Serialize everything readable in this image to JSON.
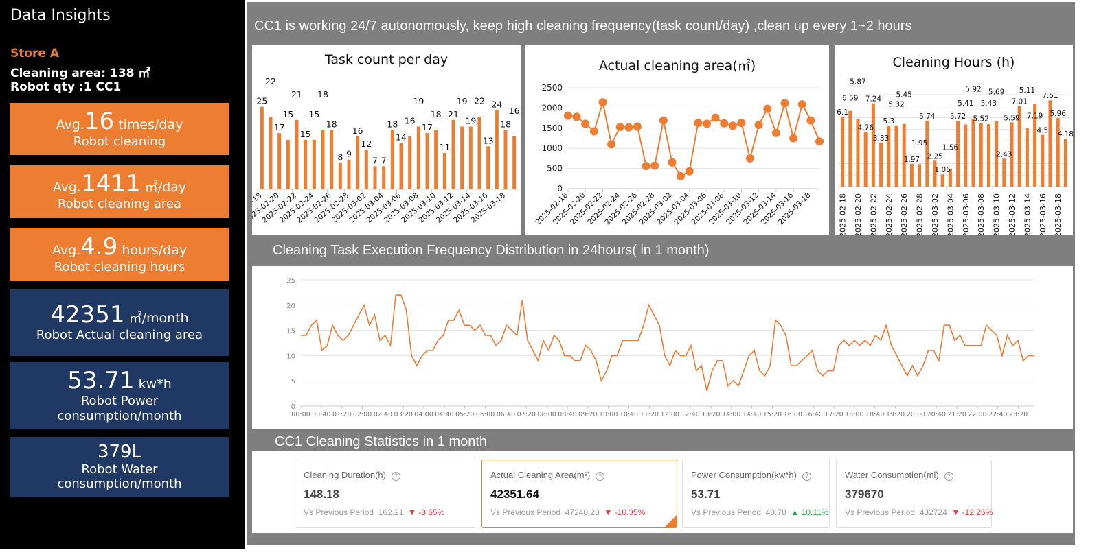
{
  "left": {
    "title": "Data Insights",
    "store": "Store A",
    "area": "Cleaning area: 138 ㎡",
    "robot": "Robot qty :1  CC1",
    "kpis": [
      {
        "prefix": "Avg.",
        "value": "16",
        "unit": " times/day",
        "label": "Robot cleaning"
      },
      {
        "prefix": "Avg.",
        "value": "1411",
        "unit": " ㎡/day",
        "label": "Robot cleaning area"
      },
      {
        "prefix": "Avg.",
        "value": "4.9",
        "unit": " hours/day",
        "label": "Robot cleaning hours"
      },
      {
        "value": "42351",
        "unit": " ㎡/month",
        "label": "Robot Actual cleaning area"
      },
      {
        "value": "53.71",
        "unit": " kw*h",
        "label": "Robot Power consumption/month"
      },
      {
        "value": "379L",
        "label": "Robot Water consumption/month"
      }
    ]
  },
  "header": "CC1 is working 24/7 autonomously, keep high cleaning frequency(task count/day) ,clean up every 1~2 hours",
  "section2_title": "Cleaning Task Execution Frequency Distribution in 24hours( in 1 month)",
  "section3_title": "CC1 Cleaning Statistics in 1 month",
  "stats": [
    {
      "label": "Cleaning Duration(h)",
      "value": "148.18",
      "cmp_label": "Vs Previous Period",
      "prev": "162.21",
      "change": "-8.65%",
      "dir": "down"
    },
    {
      "label": "Actual Cleaning Area(m²)",
      "value": "42351.64",
      "cmp_label": "Vs Previous Period",
      "prev": "47240.28",
      "change": "-10.35%",
      "dir": "down",
      "selected": true
    },
    {
      "label": "Power Consumption(kw*h)",
      "value": "53.71",
      "cmp_label": "Vs Previous Period",
      "prev": "48.78",
      "change": "10.11%",
      "dir": "up"
    },
    {
      "label": "Water Consumption(ml)",
      "value": "379670",
      "cmp_label": "Vs Previous Period",
      "prev": "432724",
      "change": "-12.26%",
      "dir": "down"
    }
  ],
  "colors": {
    "accent": "#ed7d31",
    "navy": "#1f3864",
    "down": "#e23b3b",
    "up": "#27a74a"
  },
  "chart_data": [
    {
      "type": "bar",
      "title": "Task count per day",
      "data_labels": true,
      "grid": false,
      "categories": [
        "2025-02-18",
        "2025-02-19",
        "2025-02-20",
        "2025-02-21",
        "2025-02-22",
        "2025-02-23",
        "2025-02-24",
        "2025-02-25",
        "2025-02-26",
        "2025-02-27",
        "2025-02-28",
        "2025-03-01",
        "2025-03-02",
        "2025-03-03",
        "2025-03-04",
        "2025-03-05",
        "2025-03-06",
        "2025-03-07",
        "2025-03-08",
        "2025-03-09",
        "2025-03-10",
        "2025-03-11",
        "2025-03-12",
        "2025-03-13",
        "2025-03-14",
        "2025-03-15",
        "2025-03-16",
        "2025-03-17",
        "2025-03-18",
        "2025-03-19"
      ],
      "values": [
        25,
        22,
        17,
        15,
        21,
        15,
        15,
        18,
        18,
        8,
        9,
        16,
        12,
        7,
        7,
        18,
        14,
        16,
        19,
        17,
        18,
        11,
        21,
        19,
        19,
        22,
        13,
        24,
        18,
        16
      ],
      "ylim": [
        0,
        27
      ]
    },
    {
      "type": "line",
      "title": "Actual cleaning area(㎡)",
      "markers": true,
      "grid": true,
      "categories": [
        "2025-02-18",
        "2025-02-19",
        "2025-02-20",
        "2025-02-21",
        "2025-02-22",
        "2025-02-23",
        "2025-02-24",
        "2025-02-25",
        "2025-02-26",
        "2025-02-27",
        "2025-02-28",
        "2025-03-01",
        "2025-03-02",
        "2025-03-03",
        "2025-03-04",
        "2025-03-05",
        "2025-03-06",
        "2025-03-07",
        "2025-03-08",
        "2025-03-09",
        "2025-03-10",
        "2025-03-11",
        "2025-03-12",
        "2025-03-13",
        "2025-03-14",
        "2025-03-15",
        "2025-03-16",
        "2025-03-17",
        "2025-03-18",
        "2025-03-19"
      ],
      "values": [
        1810,
        1780,
        1610,
        1420,
        2140,
        1100,
        1530,
        1520,
        1540,
        560,
        570,
        1690,
        650,
        310,
        430,
        1630,
        1610,
        1760,
        1620,
        1560,
        1630,
        750,
        1580,
        1980,
        1380,
        2120,
        1250,
        2090,
        1690,
        1170
      ],
      "yticks": [
        "0",
        "500",
        "1000",
        "1500",
        "2000",
        "2500"
      ],
      "ylim": [
        0,
        2500
      ]
    },
    {
      "type": "bar",
      "title": "Cleaning Hours (h)",
      "data_labels": true,
      "grid": true,
      "categories": [
        "2025-02-18",
        "2025-02-19",
        "2025-02-20",
        "2025-02-21",
        "2025-02-22",
        "2025-02-23",
        "2025-02-24",
        "2025-02-25",
        "2025-02-26",
        "2025-02-27",
        "2025-02-28",
        "2025-03-01",
        "2025-03-02",
        "2025-03-03",
        "2025-03-04",
        "2025-03-05",
        "2025-03-06",
        "2025-03-07",
        "2025-03-08",
        "2025-03-09",
        "2025-03-10",
        "2025-03-11",
        "2025-03-12",
        "2025-03-13",
        "2025-03-14",
        "2025-03-15",
        "2025-03-16",
        "2025-03-17",
        "2025-03-18",
        "2025-03-19"
      ],
      "values": [
        6.1,
        6.59,
        5.87,
        4.76,
        7.24,
        3.83,
        5.3,
        5.32,
        5.45,
        1.97,
        1.95,
        5.74,
        2.25,
        1.06,
        1.56,
        5.72,
        5.41,
        5.92,
        5.52,
        5.43,
        5.69,
        2.43,
        5.59,
        7.01,
        5.11,
        7.19,
        4.5,
        7.51,
        5.96,
        4.18
      ],
      "ylim": [
        0,
        8
      ]
    },
    {
      "type": "line",
      "grid": true,
      "markers": false,
      "xticks": [
        "00:00",
        "00:40",
        "01:20",
        "02:00",
        "02:40",
        "03:20",
        "04:00",
        "04:40",
        "05:20",
        "06:00",
        "06:40",
        "07:20",
        "08:00",
        "08:40",
        "09:20",
        "10:00",
        "10:40",
        "11:20",
        "12:00",
        "12:40",
        "13:20",
        "14:00",
        "14:40",
        "15:20",
        "16:00",
        "16:40",
        "17:20",
        "18:00",
        "18:40",
        "19:20",
        "20:00",
        "20:40",
        "21:20",
        "22:00",
        "22:40",
        "23:20"
      ],
      "values": [
        14,
        14,
        16,
        17,
        11,
        12,
        16,
        14,
        13,
        14,
        16,
        18,
        20,
        16,
        18,
        13,
        14,
        12,
        22,
        22,
        19,
        10,
        8,
        10,
        11,
        11,
        13,
        14,
        17,
        17,
        19,
        16,
        16,
        15,
        16,
        14,
        14,
        12,
        13,
        16,
        15,
        14,
        21,
        13,
        11,
        9,
        13,
        11,
        14,
        13,
        10,
        10,
        9,
        9,
        12,
        11,
        9,
        5,
        7,
        10,
        10,
        13,
        13,
        13,
        13,
        16,
        20,
        18,
        16,
        10,
        8,
        11,
        10,
        10,
        12,
        7,
        8,
        3,
        7,
        9,
        9,
        4,
        5,
        4,
        7,
        10,
        11,
        7,
        6,
        8,
        17,
        16,
        14,
        8,
        8,
        9,
        10,
        11,
        7,
        6,
        7,
        7,
        12,
        13,
        12,
        13,
        12,
        13,
        12,
        14,
        13,
        16,
        12,
        10,
        8,
        6,
        8,
        6,
        8,
        11,
        11,
        9,
        16,
        16,
        13,
        14,
        12,
        12,
        12,
        12,
        16,
        15,
        14,
        10,
        14,
        12,
        13,
        9,
        10,
        10
      ],
      "yticks": [
        "0",
        "5",
        "10",
        "15",
        "20",
        "25"
      ],
      "ylim": [
        0,
        25
      ],
      "xrange": [
        "00:00",
        "23:50"
      ]
    }
  ]
}
